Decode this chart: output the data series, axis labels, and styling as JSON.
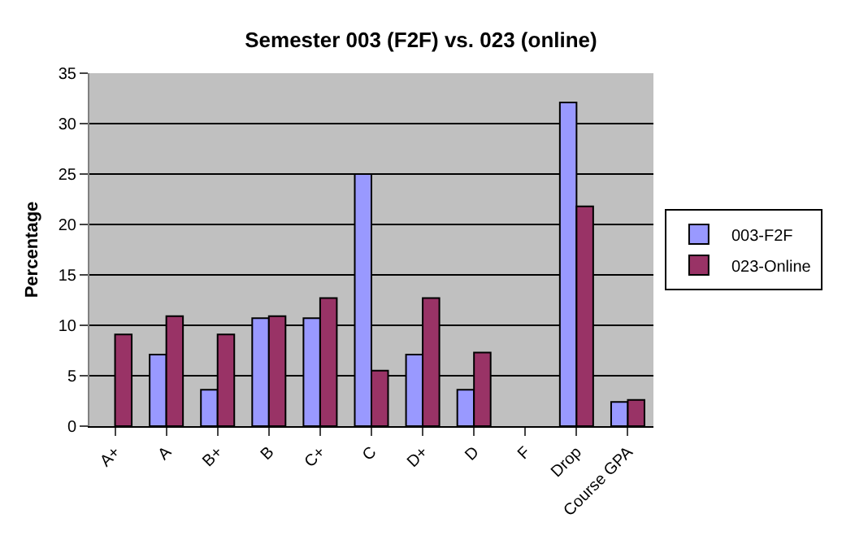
{
  "chart_data": {
    "type": "bar",
    "title": "Semester 003 (F2F) vs. 023 (online)",
    "ylabel": "Percentage",
    "categories": [
      "A+",
      "A",
      "B+",
      "B",
      "C+",
      "C",
      "D+",
      "D",
      "F",
      "Drop",
      "Course GPA"
    ],
    "series": [
      {
        "name": "003-F2F",
        "color": "#9999ff",
        "values": [
          null,
          7.1,
          3.6,
          10.7,
          10.7,
          25,
          7.1,
          3.6,
          null,
          32.1,
          2.4
        ]
      },
      {
        "name": "023-Online",
        "color": "#993366",
        "values": [
          9.1,
          10.9,
          9.1,
          10.9,
          12.7,
          5.5,
          12.7,
          7.3,
          null,
          21.8,
          2.6
        ]
      }
    ],
    "ylim": [
      0,
      35
    ],
    "yticks": [
      0,
      5,
      10,
      15,
      20,
      25,
      30,
      35
    ],
    "grid": "y",
    "legend": "right"
  }
}
